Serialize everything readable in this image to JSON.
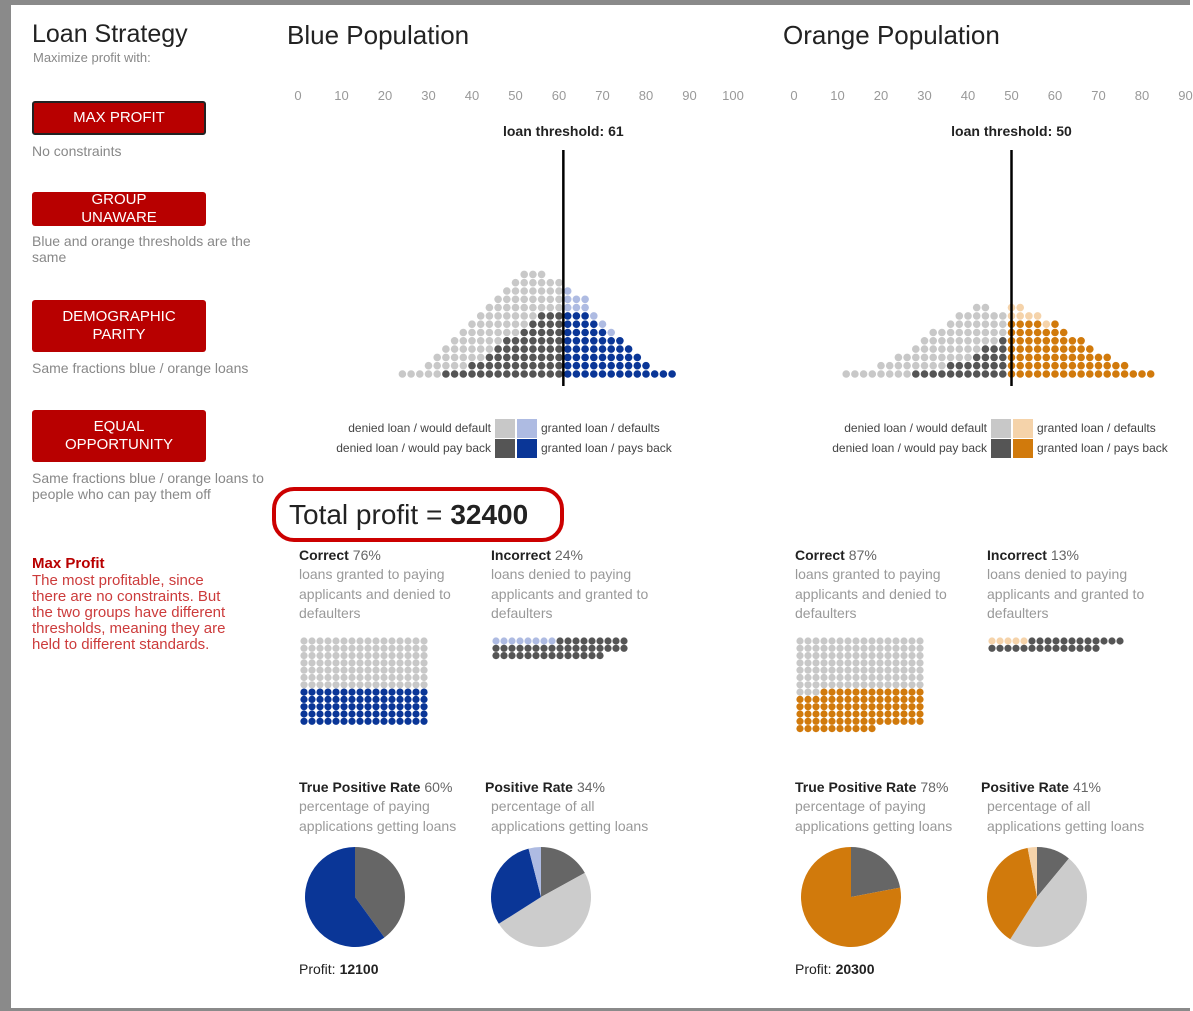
{
  "sidebar": {
    "title": "Loan Strategy",
    "subtitle": "Maximize profit with:",
    "strategies": [
      {
        "button": "MAX PROFIT",
        "description": "No constraints",
        "selected": true
      },
      {
        "button": "GROUP UNAWARE",
        "description": "Blue and orange thresholds are the same",
        "selected": false
      },
      {
        "button": "DEMOGRAPHIC PARITY",
        "description": "Same fractions blue / orange loans",
        "selected": false
      },
      {
        "button": "EQUAL OPPORTUNITY",
        "description": "Same fractions blue / orange loans to people who can pay them off",
        "selected": false
      }
    ],
    "explanation": {
      "title": "Max Profit",
      "text": "The most profitable, since there are no constraints. But the two groups have different thresholds, meaning they are held to different standards."
    }
  },
  "total_profit": {
    "label": "Total profit =",
    "value": 32400
  },
  "populations": [
    {
      "title": "Blue Population",
      "xlim": [
        0,
        100
      ],
      "xticks": [
        0,
        10,
        20,
        30,
        40,
        50,
        60,
        70,
        80,
        90,
        100
      ],
      "threshold_label": "loan threshold:",
      "threshold": 61,
      "colors": [
        "#c8c8c8",
        "#aebbe2",
        "#555555",
        "#0a3697"
      ],
      "legend": [
        "denied loan / would default",
        "granted loan / defaults",
        "denied loan / would pay back",
        "granted loan / pays back"
      ],
      "histogram": {
        "scores": [
          24,
          26,
          28,
          30,
          32,
          34,
          36,
          38,
          40,
          42,
          44,
          46,
          48,
          50,
          52,
          54,
          56,
          58,
          60,
          62,
          64,
          66,
          68,
          70,
          72,
          74,
          76,
          78,
          80,
          82,
          84,
          86
        ],
        "would_default": [
          1,
          1,
          1,
          2,
          3,
          3,
          4,
          5,
          5,
          6,
          6,
          6,
          6,
          7,
          7,
          6,
          5,
          4,
          4,
          3,
          2,
          2,
          1,
          1,
          1,
          0,
          0,
          0,
          0,
          0,
          0,
          0
        ],
        "pays_back": [
          0,
          0,
          0,
          0,
          0,
          1,
          1,
          1,
          2,
          2,
          3,
          4,
          5,
          5,
          6,
          7,
          8,
          8,
          8,
          8,
          8,
          8,
          7,
          6,
          5,
          5,
          4,
          3,
          2,
          1,
          1,
          1
        ]
      },
      "correct": {
        "title": "Correct",
        "percent": "76%",
        "text": "loans granted to paying applicants and denied to defaulters",
        "dot_counts": [
          112,
          80
        ],
        "dot_colors": [
          "#c8c8c8",
          "#0a3697"
        ]
      },
      "incorrect": {
        "title": "Incorrect",
        "percent": "24%",
        "text": "loans denied to paying applicants and granted to defaulters",
        "dot_counts": [
          8,
          40
        ],
        "dot_colors": [
          "#aebbe2",
          "#555555"
        ]
      },
      "tpr": {
        "title": "True Positive Rate",
        "percent": "60%",
        "text": "percentage of paying applications getting loans",
        "pie_values": [
          40,
          60
        ],
        "pie_colors": [
          "#666666",
          "#0a3697"
        ]
      },
      "pr": {
        "title": "Positive Rate",
        "percent": "34%",
        "text": "percentage of all applications getting loans",
        "pie_values": [
          17,
          49,
          30,
          4
        ],
        "pie_colors": [
          "#666666",
          "#cccccc",
          "#0a3697",
          "#aebbe2"
        ]
      },
      "profit": {
        "label": "Profit:",
        "value": 12100
      }
    },
    {
      "title": "Orange Population",
      "xlim": [
        0,
        100
      ],
      "xticks": [
        0,
        10,
        20,
        30,
        40,
        50,
        60,
        70,
        80,
        90
      ],
      "threshold_label": "loan threshold:",
      "threshold": 50,
      "colors": [
        "#c8c8c8",
        "#f5d3aa",
        "#555555",
        "#d17a0c"
      ],
      "legend": [
        "denied loan / would default",
        "granted loan / defaults",
        "denied loan / would pay back",
        "granted loan / pays back"
      ],
      "histogram": {
        "scores": [
          12,
          14,
          16,
          18,
          20,
          22,
          24,
          26,
          28,
          30,
          32,
          34,
          36,
          38,
          40,
          42,
          44,
          46,
          48,
          50,
          52,
          54,
          56,
          58,
          60,
          62,
          64,
          66,
          68,
          70,
          72,
          74,
          76,
          78,
          80,
          82
        ],
        "would_default": [
          1,
          1,
          1,
          1,
          2,
          2,
          3,
          3,
          3,
          4,
          5,
          5,
          5,
          6,
          6,
          6,
          5,
          4,
          3,
          2,
          2,
          1,
          1,
          1,
          0,
          0,
          0,
          0,
          0,
          0,
          0,
          0,
          0,
          0,
          0,
          0
        ],
        "pays_back": [
          0,
          0,
          0,
          0,
          0,
          0,
          0,
          0,
          1,
          1,
          1,
          1,
          2,
          2,
          2,
          3,
          4,
          4,
          5,
          7,
          7,
          7,
          7,
          6,
          7,
          6,
          5,
          5,
          4,
          3,
          3,
          2,
          2,
          1,
          1,
          1
        ]
      },
      "correct": {
        "title": "Correct",
        "percent": "87%",
        "text": "loans granted to paying applicants and denied to defaulters",
        "dot_counts": [
          115,
          87
        ],
        "dot_colors": [
          "#c8c8c8",
          "#d17a0c"
        ]
      },
      "incorrect": {
        "title": "Incorrect",
        "percent": "13%",
        "text": "loans denied to paying applicants and granted to defaulters",
        "dot_counts": [
          5,
          26
        ],
        "dot_colors": [
          "#f5d3aa",
          "#555555"
        ]
      },
      "tpr": {
        "title": "True Positive Rate",
        "percent": "78%",
        "text": "percentage of paying applications getting loans",
        "pie_values": [
          22,
          78
        ],
        "pie_colors": [
          "#666666",
          "#d17a0c"
        ]
      },
      "pr": {
        "title": "Positive Rate",
        "percent": "41%",
        "text": "percentage of all applications getting loans",
        "pie_values": [
          11,
          48,
          38,
          3
        ],
        "pie_colors": [
          "#666666",
          "#cccccc",
          "#d17a0c",
          "#f5d3aa"
        ]
      },
      "profit": {
        "label": "Profit:",
        "value": 20300
      }
    }
  ]
}
